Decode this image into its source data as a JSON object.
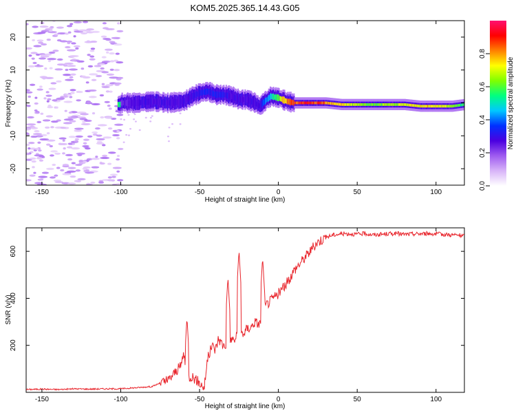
{
  "title": "KOM5.2025.365.14.43.G05",
  "chart_data": [
    {
      "type": "heatmap",
      "xlabel": "Height of straight line (km)",
      "ylabel": "Frequency (Hz)",
      "xlim": [
        -160,
        118
      ],
      "ylim": [
        -25,
        25
      ],
      "xticks": [
        -150,
        -100,
        -50,
        0,
        50,
        100
      ],
      "yticks": [
        -20,
        -10,
        0,
        10,
        20
      ],
      "colorbar": {
        "label": "Normalized spectral amplitude",
        "range": [
          0,
          1
        ],
        "ticks": [
          0.0,
          0.2,
          0.4,
          0.6,
          0.8
        ],
        "colormap": [
          "#ffffff",
          "#d8b4f8",
          "#9f5cf0",
          "#4b00e0",
          "#0030ff",
          "#00c8ff",
          "#00ff80",
          "#80ff00",
          "#ffff00",
          "#ff8000",
          "#ff0000",
          "#ff1070"
        ]
      },
      "ridge": {
        "description_points_x": [
          -100,
          -90,
          -80,
          -70,
          -60,
          -55,
          -50,
          -45,
          -40,
          -35,
          -30,
          -25,
          -20,
          -15,
          -12,
          -10,
          -5,
          0,
          5,
          10,
          20,
          30,
          40,
          50,
          60,
          70,
          80,
          90,
          100,
          110,
          118
        ],
        "frequency_hz": [
          0,
          0,
          0.5,
          0,
          0.5,
          2,
          3,
          3.5,
          2.5,
          2.5,
          2,
          1,
          1,
          0,
          -1,
          0,
          2,
          1.5,
          0.5,
          0,
          0,
          0,
          -0.5,
          -0.5,
          -0.5,
          -0.5,
          -0.5,
          -1,
          -1,
          -1,
          -0.5
        ],
        "amplitude": [
          0.25,
          0.3,
          0.3,
          0.3,
          0.3,
          0.3,
          0.35,
          0.35,
          0.35,
          0.35,
          0.3,
          0.3,
          0.3,
          0.3,
          0.3,
          0.4,
          0.5,
          0.7,
          0.85,
          0.95,
          0.95,
          0.9,
          0.8,
          0.7,
          0.65,
          0.7,
          0.75,
          0.8,
          0.8,
          0.7,
          0.6
        ]
      }
    },
    {
      "type": "line",
      "xlabel": "Height of straight line (km)",
      "ylabel": "SNR (v/v)",
      "xlim": [
        -160,
        118
      ],
      "ylim": [
        0,
        700
      ],
      "xticks": [
        -150,
        -100,
        -50,
        0,
        50,
        100
      ],
      "yticks": [
        200,
        400,
        600
      ],
      "grid": false,
      "series": [
        {
          "color": "#e8232a",
          "x": [
            -160,
            -150,
            -140,
            -130,
            -120,
            -110,
            -100,
            -90,
            -80,
            -75,
            -70,
            -65,
            -62,
            -60,
            -58,
            -55,
            -50,
            -47,
            -45,
            -42,
            -40,
            -38,
            -35,
            -31,
            -30,
            -28,
            -25,
            -22,
            -20,
            -17,
            -15,
            -12,
            -10,
            -8,
            -5,
            0,
            5,
            10,
            15,
            20,
            25,
            30,
            35,
            40,
            45,
            50,
            55,
            60,
            65,
            70,
            75,
            80,
            85,
            90,
            95,
            100,
            105,
            110,
            115,
            118
          ],
          "y": [
            12,
            14,
            12,
            15,
            14,
            15,
            15,
            20,
            25,
            40,
            50,
            90,
            110,
            170,
            60,
            70,
            40,
            20,
            140,
            200,
            180,
            230,
            200,
            210,
            230,
            220,
            260,
            250,
            270,
            280,
            300,
            290,
            330,
            370,
            390,
            420,
            460,
            520,
            560,
            600,
            640,
            660,
            670,
            675,
            675,
            672,
            676,
            670,
            672,
            675,
            676,
            672,
            674,
            675,
            676,
            674,
            672,
            670,
            668,
            665
          ]
        }
      ],
      "spikes": [
        {
          "x": -58,
          "y": 320
        },
        {
          "x": -32,
          "y": 490
        },
        {
          "x": -25,
          "y": 605
        },
        {
          "x": -10,
          "y": 575
        }
      ]
    }
  ]
}
